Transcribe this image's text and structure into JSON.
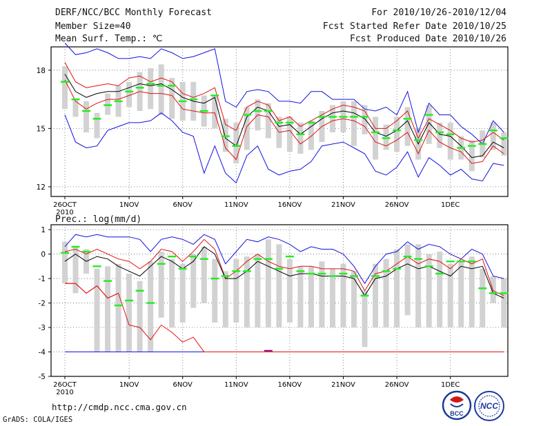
{
  "header": {
    "title": "DERF/NCC/BCC Monthly Forecast",
    "member_size": "Member Size=40",
    "variable1": "Mean Surf. Temp.: ℃",
    "period": "For 2010/10/26-2010/12/04",
    "started": "Fcst Started Refer Date 2010/10/25",
    "produced": "Fcst Produced Date 2010/10/26"
  },
  "footer": {
    "url": "http://cmdp.ncc.cma.gov.cn",
    "grads": "GrADS: COLA/IGES",
    "logo_bcc": "BCC",
    "logo_ncc": "NCC"
  },
  "colors": {
    "envelope": "#1010e0",
    "spread": "#e01010",
    "mean": "#000000",
    "obs": "#22ee22",
    "box": "#d2d2d2"
  },
  "chart_data": [
    {
      "type": "line",
      "title": "Mean Surf. Temp.: ℃",
      "ylabel": "℃",
      "ylim": [
        11.5,
        19.2
      ],
      "yticks": [
        12,
        15,
        18
      ],
      "x_start_label": "2010",
      "xticks": [
        {
          "day": 0,
          "label": "26OCT"
        },
        {
          "day": 6,
          "label": "1NOV"
        },
        {
          "day": 11,
          "label": "6NOV"
        },
        {
          "day": 16,
          "label": "11NOV"
        },
        {
          "day": 21,
          "label": "16NOV"
        },
        {
          "day": 26,
          "label": "21NOV"
        },
        {
          "day": 31,
          "label": "26NOV"
        },
        {
          "day": 36,
          "label": "1DEC"
        }
      ],
      "series": [
        {
          "name": "max",
          "values": [
            19.4,
            18.8,
            18.9,
            19.1,
            18.9,
            18.6,
            18.6,
            18.7,
            18.6,
            19.1,
            18.9,
            18.6,
            18.7,
            18.9,
            19.1,
            16.4,
            16.1,
            16.9,
            17.0,
            16.9,
            16.4,
            16.4,
            16.3,
            16.9,
            16.9,
            16.5,
            16.5,
            16.5,
            16.0,
            15.9,
            16.1,
            15.7,
            16.9,
            14.8,
            16.3,
            15.7,
            15.7,
            15.1,
            14.7,
            14.2,
            15.4,
            14.8
          ]
        },
        {
          "name": "upper",
          "values": [
            18.4,
            17.4,
            17.1,
            17.2,
            17.3,
            17.2,
            17.6,
            17.7,
            17.4,
            17.6,
            17.4,
            16.8,
            16.6,
            16.8,
            17.1,
            15.2,
            14.9,
            16.1,
            16.4,
            16.2,
            15.4,
            15.6,
            15.1,
            15.4,
            15.7,
            16.0,
            16.2,
            16.1,
            15.9,
            15.0,
            15.0,
            15.4,
            15.9,
            14.5,
            15.5,
            15.2,
            14.9,
            14.5,
            14.3,
            14.4,
            14.8,
            14.4
          ]
        },
        {
          "name": "mean",
          "values": [
            17.8,
            16.9,
            16.6,
            16.8,
            16.9,
            16.9,
            17.1,
            17.3,
            17.2,
            17.3,
            17.0,
            16.6,
            16.4,
            16.3,
            16.6,
            14.5,
            14.1,
            15.6,
            16.1,
            15.9,
            15.1,
            15.2,
            14.7,
            15.1,
            15.5,
            15.8,
            15.9,
            15.8,
            15.5,
            14.8,
            14.6,
            14.9,
            15.4,
            14.2,
            15.3,
            14.7,
            14.6,
            14.1,
            13.5,
            13.6,
            14.3,
            14.0
          ]
        },
        {
          "name": "lower",
          "values": [
            17.5,
            16.4,
            16.0,
            16.3,
            16.5,
            16.5,
            16.7,
            16.9,
            16.8,
            16.8,
            16.7,
            16.0,
            15.9,
            15.8,
            15.8,
            14.0,
            13.4,
            15.1,
            15.7,
            15.6,
            14.8,
            14.9,
            14.2,
            14.6,
            15.1,
            15.4,
            15.5,
            15.4,
            15.1,
            14.3,
            14.1,
            14.4,
            14.8,
            13.7,
            14.9,
            14.3,
            14.0,
            13.8,
            13.2,
            13.3,
            14.1,
            13.7
          ]
        },
        {
          "name": "min",
          "values": [
            15.7,
            14.3,
            14.0,
            14.1,
            14.9,
            15.1,
            15.3,
            15.3,
            15.4,
            15.8,
            15.4,
            14.8,
            14.6,
            12.7,
            14.1,
            12.7,
            12.2,
            13.6,
            14.1,
            12.9,
            12.6,
            12.8,
            12.9,
            13.3,
            14.1,
            14.2,
            14.3,
            14.0,
            13.7,
            12.8,
            12.6,
            13.0,
            13.8,
            12.5,
            13.5,
            13.1,
            12.6,
            12.9,
            12.4,
            12.3,
            13.2,
            13.1
          ]
        },
        {
          "name": "observed",
          "values": [
            17.4,
            16.5,
            15.9,
            15.5,
            16.2,
            16.4,
            16.9,
            17.1,
            17.3,
            17.2,
            17.2,
            16.4,
            16.5,
            15.9,
            16.7,
            14.6,
            14.1,
            15.7,
            15.9,
            15.9,
            15.3,
            15.3,
            14.7,
            15.3,
            15.6,
            15.6,
            15.6,
            15.6,
            15.6,
            14.8,
            14.5,
            14.9,
            15.5,
            14.4,
            15.7,
            14.8,
            14.7,
            14.0,
            14.1,
            14.2,
            14.9,
            14.5
          ]
        }
      ],
      "boxes": [
        [
          16.0,
          18.2
        ],
        [
          15.6,
          16.5
        ],
        [
          14.8,
          16.4
        ],
        [
          14.5,
          15.8
        ],
        [
          15.7,
          16.8
        ],
        [
          15.6,
          17.2
        ],
        [
          16.1,
          17.4
        ],
        [
          15.9,
          17.9
        ],
        [
          16.0,
          18.1
        ],
        [
          15.7,
          18.3
        ],
        [
          15.5,
          17.6
        ],
        [
          15.4,
          17.4
        ],
        [
          15.4,
          17.4
        ],
        [
          15.1,
          16.7
        ],
        [
          15.0,
          16.7
        ],
        [
          13.8,
          15.5
        ],
        [
          13.2,
          15.3
        ],
        [
          13.9,
          16.1
        ],
        [
          14.9,
          16.5
        ],
        [
          14.5,
          16.3
        ],
        [
          14.0,
          15.6
        ],
        [
          13.8,
          15.6
        ],
        [
          13.7,
          15.3
        ],
        [
          13.9,
          15.4
        ],
        [
          14.3,
          15.9
        ],
        [
          14.8,
          16.2
        ],
        [
          14.8,
          16.4
        ],
        [
          14.1,
          16.4
        ],
        [
          14.7,
          16.2
        ],
        [
          13.4,
          15.6
        ],
        [
          13.9,
          15.2
        ],
        [
          13.8,
          15.6
        ],
        [
          14.1,
          16.1
        ],
        [
          13.4,
          15.0
        ],
        [
          14.2,
          16.2
        ],
        [
          14.0,
          15.3
        ],
        [
          13.4,
          15.3
        ],
        [
          13.4,
          14.6
        ],
        [
          12.8,
          14.4
        ],
        [
          13.5,
          14.9
        ],
        [
          13.9,
          15.3
        ],
        [
          13.6,
          14.8
        ]
      ]
    },
    {
      "type": "line",
      "title": "Prec.: log(mm/d)",
      "ylabel": "log(mm/d)",
      "ylim": [
        -5,
        1.2
      ],
      "yticks": [
        -5,
        -4,
        -3,
        -2,
        -1,
        0,
        1
      ],
      "x_start_label": "2010",
      "xticks": [
        {
          "day": 0,
          "label": "26OCT"
        },
        {
          "day": 6,
          "label": "1NOV"
        },
        {
          "day": 11,
          "label": "6NOV"
        },
        {
          "day": 16,
          "label": "11NOV"
        },
        {
          "day": 21,
          "label": "16NOV"
        },
        {
          "day": 26,
          "label": "21NOV"
        },
        {
          "day": 31,
          "label": "26NOV"
        },
        {
          "day": 36,
          "label": "1DEC"
        }
      ],
      "series": [
        {
          "name": "max",
          "values": [
            0.3,
            0.8,
            0.7,
            0.8,
            0.7,
            0.7,
            0.7,
            0.6,
            0.1,
            0.6,
            0.7,
            0.6,
            0.4,
            0.8,
            0.6,
            -0.4,
            0.1,
            0.6,
            0.5,
            0.7,
            0.6,
            0.4,
            0.1,
            0.3,
            0.2,
            0.2,
            0.0,
            -0.5,
            -1.2,
            -0.5,
            0.0,
            0.1,
            0.5,
            0.2,
            0.4,
            0.3,
            0.0,
            -0.2,
            0.2,
            0.0,
            -0.9,
            -1.0
          ]
        },
        {
          "name": "upper",
          "values": [
            0.1,
            0.2,
            0.0,
            0.2,
            0.0,
            -0.2,
            -0.3,
            -0.6,
            -0.3,
            0.2,
            0.1,
            -0.3,
            0.1,
            0.6,
            0.2,
            -1.0,
            -0.7,
            -0.3,
            0.0,
            -0.3,
            -0.5,
            -0.6,
            -0.5,
            -0.5,
            -0.6,
            -0.6,
            -0.6,
            -0.7,
            -1.5,
            -0.8,
            -0.7,
            -0.4,
            -0.1,
            -0.4,
            -0.2,
            -0.3,
            -0.6,
            -0.2,
            -0.4,
            -0.2,
            -1.5,
            -1.7
          ]
        },
        {
          "name": "mean",
          "values": [
            -0.3,
            0.0,
            -0.3,
            -0.1,
            -0.2,
            -0.5,
            -0.7,
            -0.9,
            -0.5,
            -0.1,
            -0.3,
            -0.6,
            -0.3,
            0.3,
            0.0,
            -1.0,
            -1.0,
            -0.7,
            -0.3,
            -0.5,
            -0.7,
            -0.9,
            -0.8,
            -0.8,
            -0.9,
            -0.9,
            -0.9,
            -1.0,
            -1.7,
            -1.0,
            -0.9,
            -0.6,
            -0.4,
            -0.6,
            -0.5,
            -0.7,
            -0.9,
            -0.5,
            -0.6,
            -0.5,
            -1.6,
            -1.8
          ]
        },
        {
          "name": "lower",
          "values": [
            -1.2,
            -1.2,
            -1.6,
            -1.3,
            -1.8,
            -1.6,
            -2.0,
            -2.3,
            -1.8,
            -1.3,
            -1.3,
            -1.3,
            -1.5,
            -0.7,
            -0.9,
            -1.8,
            -1.6,
            -1.1,
            -1.2,
            -1.2,
            -1.2,
            -1.4,
            -1.3,
            -1.3,
            -1.2,
            -1.2,
            -1.2,
            -1.4,
            -2.3,
            -1.7,
            -1.5,
            -1.2,
            -1.1,
            -1.2,
            -1.1,
            -1.3,
            -1.5,
            -1.3,
            -1.5,
            -1.3,
            -2.1,
            -2.0
          ]
        },
        {
          "name": "min",
          "values": [
            -4,
            -4,
            -4,
            -4,
            -4,
            -4,
            -4,
            -4,
            -4,
            -4,
            -4,
            -4,
            -4,
            -4,
            -4,
            -4,
            -4,
            -4,
            -4,
            -4,
            -4,
            -4,
            -4,
            -4,
            -4,
            -4,
            -4,
            -4,
            -4,
            -4,
            -4,
            -4,
            -4,
            -4,
            -4,
            -4,
            -4,
            -4,
            -4,
            -4,
            -4,
            -4
          ]
        },
        {
          "name": "q10",
          "values": [
            -1.2,
            -1.2,
            -1.6,
            -1.3,
            -1.8,
            -1.6,
            -2.9,
            -3.0,
            -3.5,
            -2.9,
            -3.2,
            -3.6,
            -3.4,
            -4.0,
            -4.0,
            -4.0,
            -4.0,
            -4.0,
            -4.0,
            -4.0,
            -4.0,
            -4.0,
            -4.0,
            -4.0,
            -4.0,
            -4.0,
            -4.0,
            -4.0,
            -4.0,
            -4.0,
            -4.0,
            -4.0,
            -4.0,
            -4.0,
            -4.0,
            -4.0,
            -4.0,
            -4.0,
            -4.0,
            -4.0,
            -4.0,
            -4.0
          ]
        },
        {
          "name": "observed",
          "values": [
            0.05,
            0.3,
            0.1,
            -0.5,
            -1.1,
            -2.1,
            -1.9,
            -1.5,
            -2.0,
            -0.4,
            -0.1,
            -0.6,
            -0.1,
            -0.2,
            -1.0,
            -0.9,
            -0.7,
            -0.7,
            -0.2,
            -0.2,
            -0.6,
            -0.1,
            -0.7,
            -0.8,
            -0.8,
            -0.9,
            -0.8,
            -0.9,
            -1.7,
            -0.9,
            -0.7,
            -0.6,
            -0.1,
            -0.2,
            -0.5,
            -0.8,
            -0.3,
            -0.3,
            -0.3,
            -1.4,
            -1.6,
            -1.6
          ]
        },
        {
          "name": "outlier",
          "values": [
            null,
            null,
            null,
            null,
            null,
            null,
            null,
            null,
            null,
            null,
            null,
            null,
            null,
            null,
            null,
            null,
            null,
            null,
            null,
            -3.95,
            null,
            null,
            null,
            null,
            null,
            null,
            null,
            null,
            null,
            null,
            null,
            null,
            null,
            null,
            null,
            null,
            null,
            null,
            null,
            null,
            null,
            null
          ]
        }
      ],
      "boxes": [
        [
          -1.2,
          0.5
        ],
        [
          -1.6,
          0.3
        ],
        [
          -0.8,
          0.2
        ],
        [
          -4.0,
          -0.6
        ],
        [
          -4.0,
          -0.5
        ],
        [
          -4.0,
          -0.4
        ],
        [
          -4.0,
          -0.8
        ],
        [
          -4.0,
          -1.1
        ],
        [
          -4.0,
          -0.3
        ],
        [
          -2.6,
          0.1
        ],
        [
          -3.0,
          -0.2
        ],
        [
          -2.8,
          -0.4
        ],
        [
          -2.2,
          0.0
        ],
        [
          -2.0,
          0.3
        ],
        [
          -2.8,
          -0.2
        ],
        [
          -3.0,
          -0.7
        ],
        [
          -2.8,
          -0.2
        ],
        [
          -3.0,
          -0.1
        ],
        [
          -3.0,
          0.0
        ],
        [
          -3.0,
          0.6
        ],
        [
          -3.0,
          0.4
        ],
        [
          -2.8,
          -0.2
        ],
        [
          -3.0,
          -0.5
        ],
        [
          -3.0,
          -0.5
        ],
        [
          -3.0,
          -0.3
        ],
        [
          -3.0,
          -0.6
        ],
        [
          -3.0,
          -0.4
        ],
        [
          -3.0,
          -0.7
        ],
        [
          -3.8,
          -1.5
        ],
        [
          -3.0,
          -0.4
        ],
        [
          -3.0,
          -0.2
        ],
        [
          -3.0,
          0.2
        ],
        [
          -2.5,
          0.4
        ],
        [
          -3.0,
          0.4
        ],
        [
          -3.0,
          0.0
        ],
        [
          -3.0,
          0.1
        ],
        [
          -3.0,
          -0.4
        ],
        [
          -3.0,
          -0.3
        ],
        [
          -3.0,
          -0.1
        ],
        [
          -3.0,
          -0.6
        ],
        [
          -2.0,
          -0.9
        ],
        [
          -3.0,
          -1.0
        ]
      ]
    }
  ]
}
